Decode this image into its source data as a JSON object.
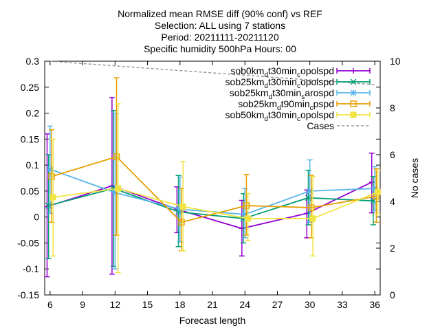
{
  "chart_data": {
    "type": "line",
    "title_lines": [
      "Normalized mean RMSE diff (90% conf) vs REF",
      "Selection: ALL using     7 stations",
      "Period: 20211111-20211120",
      "Specific humidity 500hPa   Hours: 00"
    ],
    "xlabel": "Forecast length",
    "ylabel": "",
    "y2label": "No cases",
    "xlim": [
      5.5,
      36.5
    ],
    "ylim": [
      -0.15,
      0.3
    ],
    "y2lim": [
      0,
      10
    ],
    "xticks": [
      "6",
      "9",
      "12",
      "15",
      "18",
      "21",
      "24",
      "27",
      "30",
      "33",
      "36"
    ],
    "yticks": [
      "-0.15",
      "-0.1",
      "-0.05",
      "0",
      "0.05",
      "0.1",
      "0.15",
      "0.2",
      "0.25",
      "0.3"
    ],
    "y2ticks": [
      "0",
      "2",
      "4",
      "6",
      "8",
      "10"
    ],
    "grid": false,
    "legend_position": "top-right",
    "series": [
      {
        "name": "sob0km_d t30min_c opolspd",
        "legend": {
          "base": "sob0km",
          "sub1": "d",
          "mid": "t30min",
          "sub2": "c",
          "tail": "opolspd"
        },
        "color": "#9400d3",
        "marker": "plus",
        "x": [
          6,
          12,
          18,
          24,
          30,
          36
        ],
        "y": [
          0.02,
          0.06,
          0.015,
          -0.022,
          0.007,
          0.067
        ],
        "err_low": [
          -0.115,
          -0.11,
          -0.03,
          -0.075,
          -0.04,
          0.008
        ],
        "err_high": [
          0.16,
          0.23,
          0.058,
          0.032,
          0.052,
          0.123
        ]
      },
      {
        "name": "sob25km_d t30min_c opolspd",
        "legend": {
          "base": "sob25km",
          "sub1": "d",
          "mid": "t30min",
          "sub2": "c",
          "tail": "opolspd"
        },
        "color": "#009e73",
        "marker": "cross",
        "x": [
          6,
          12,
          18,
          24,
          30,
          36
        ],
        "y": [
          0.022,
          0.055,
          0.01,
          -0.003,
          0.037,
          0.031
        ],
        "err_low": [
          -0.08,
          -0.095,
          -0.057,
          -0.05,
          -0.015,
          -0.015
        ],
        "err_high": [
          0.12,
          0.205,
          0.08,
          0.045,
          0.09,
          0.078
        ]
      },
      {
        "name": "sob25km_d t30min_s arospd",
        "legend": {
          "base": "sob25km",
          "sub1": "d",
          "mid": "t30min",
          "sub2": "s",
          "tail": "arospd"
        },
        "color": "#56b4e9",
        "marker": "star",
        "x": [
          6,
          12,
          18,
          24,
          30,
          36
        ],
        "y": [
          0.092,
          0.047,
          0.015,
          0.005,
          0.05,
          0.055
        ],
        "err_low": [
          0.007,
          -0.1,
          -0.048,
          -0.04,
          -0.01,
          0.012
        ],
        "err_high": [
          0.175,
          0.2,
          0.077,
          0.055,
          0.11,
          0.097
        ]
      },
      {
        "name": "sob25km_d t90min_c pspd",
        "legend": {
          "base": "sob25km",
          "sub1": "d",
          "mid": "t90min",
          "sub2": "c",
          "tail": "pspd"
        },
        "color": "#e69f00",
        "marker": "square",
        "x": [
          6,
          12,
          18,
          24,
          30,
          36
        ],
        "y": [
          0.078,
          0.116,
          -0.01,
          0.022,
          0.018,
          0.04
        ],
        "err_low": [
          -0.01,
          -0.035,
          -0.065,
          -0.035,
          -0.04,
          -0.01
        ],
        "err_high": [
          0.168,
          0.268,
          0.055,
          0.082,
          0.08,
          0.093
        ]
      },
      {
        "name": "sob50km_d t30min_c opolspd",
        "legend": {
          "base": "sob50km",
          "sub1": "d",
          "mid": "t30min",
          "sub2": "c",
          "tail": "opolspd"
        },
        "color": "#f0e442",
        "marker": "filled-square",
        "x": [
          6,
          12,
          18,
          24,
          30,
          36
        ],
        "y": [
          0.038,
          0.055,
          0.02,
          -0.003,
          -0.003,
          0.048
        ],
        "err_low": [
          -0.075,
          -0.107,
          -0.065,
          -0.045,
          -0.075,
          0.005
        ],
        "err_high": [
          0.15,
          0.218,
          0.107,
          0.045,
          0.078,
          0.09
        ]
      }
    ],
    "cases": {
      "name": "Cases",
      "color": "#999999",
      "axis": "y2",
      "x": [
        6,
        36
      ],
      "y": [
        10,
        9
      ]
    }
  }
}
